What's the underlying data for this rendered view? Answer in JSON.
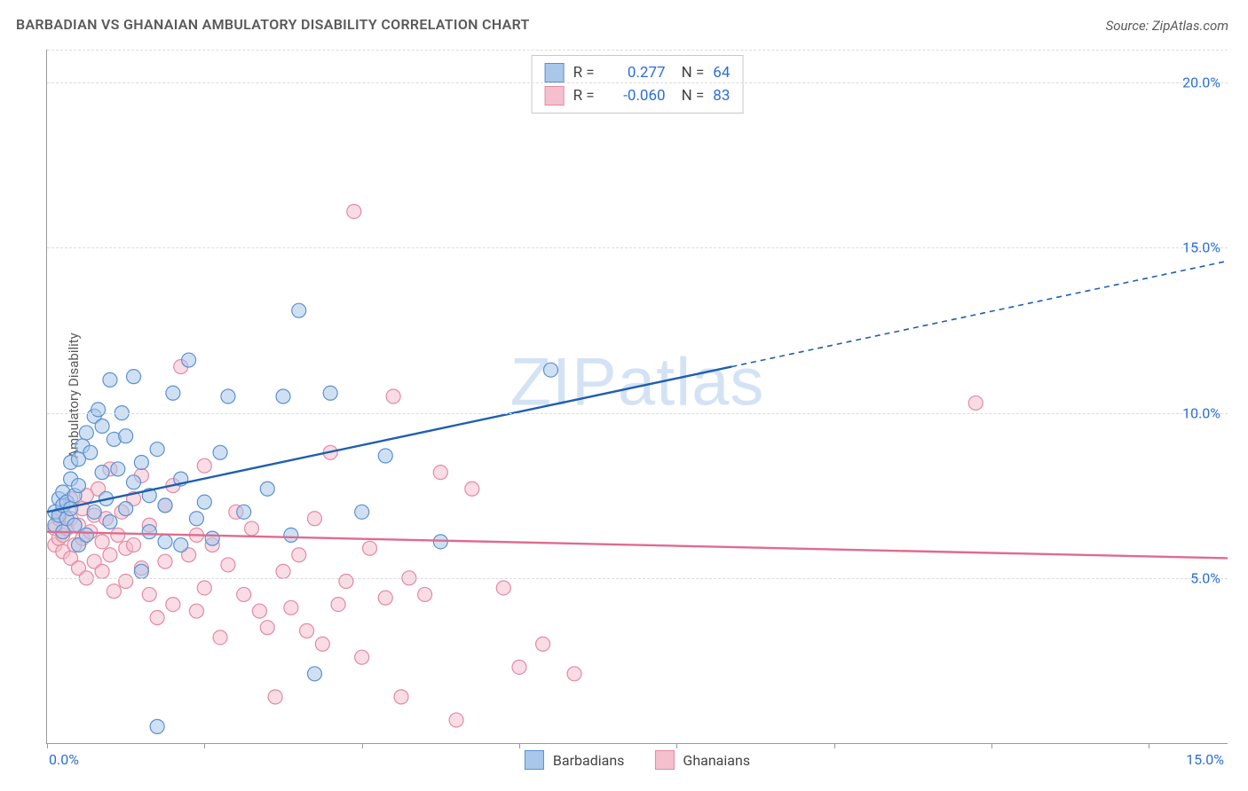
{
  "title": "BARBADIAN VS GHANAIAN AMBULATORY DISABILITY CORRELATION CHART",
  "source_label": "Source: ",
  "source_value": "ZipAtlas.com",
  "ylabel": "Ambulatory Disability",
  "watermark": "ZIPatlas",
  "chart": {
    "type": "scatter-with-regression",
    "xlim": [
      0,
      15
    ],
    "ylim": [
      0,
      21
    ],
    "y_ticks": [
      5,
      10,
      15,
      20
    ],
    "y_tick_labels": [
      "5.0%",
      "10.0%",
      "15.0%",
      "20.0%"
    ],
    "x_ticks": [
      0,
      2,
      4,
      6,
      8,
      10,
      12,
      14
    ],
    "x_labels_shown": {
      "0": "0.0%",
      "15": "15.0%"
    },
    "grid_color": "#dcdcdc",
    "axis_color": "#9a9a9a",
    "tick_label_color": "#2a6fd6",
    "background_color": "#ffffff",
    "marker_radius": 8,
    "marker_opacity": 0.55,
    "marker_stroke_width": 1.2,
    "line_width_solid": 2.4,
    "line_width_dashed": 1.6,
    "dash_pattern": "6,5"
  },
  "series": {
    "barbadians": {
      "label": "Barbadians",
      "fill_color": "#a9c7ea",
      "stroke_color": "#5a91d2",
      "line_color": "#1f5fb0",
      "R": "0.277",
      "N": "64",
      "regression": {
        "x1": 0,
        "y1": 7.0,
        "x2_solid": 8.7,
        "y2_solid": 11.4,
        "x2_dashed": 15,
        "y2_dashed": 14.6
      },
      "points": [
        [
          0.1,
          6.6
        ],
        [
          0.1,
          7.0
        ],
        [
          0.15,
          6.9
        ],
        [
          0.15,
          7.4
        ],
        [
          0.2,
          6.4
        ],
        [
          0.2,
          7.2
        ],
        [
          0.2,
          7.6
        ],
        [
          0.25,
          6.8
        ],
        [
          0.25,
          7.3
        ],
        [
          0.3,
          8.0
        ],
        [
          0.3,
          8.5
        ],
        [
          0.3,
          7.1
        ],
        [
          0.35,
          6.6
        ],
        [
          0.35,
          7.5
        ],
        [
          0.4,
          6.0
        ],
        [
          0.4,
          7.8
        ],
        [
          0.4,
          8.6
        ],
        [
          0.45,
          9.0
        ],
        [
          0.5,
          6.3
        ],
        [
          0.5,
          9.4
        ],
        [
          0.55,
          8.8
        ],
        [
          0.6,
          9.9
        ],
        [
          0.6,
          7.0
        ],
        [
          0.65,
          10.1
        ],
        [
          0.7,
          8.2
        ],
        [
          0.7,
          9.6
        ],
        [
          0.75,
          7.4
        ],
        [
          0.8,
          6.7
        ],
        [
          0.8,
          11.0
        ],
        [
          0.85,
          9.2
        ],
        [
          0.9,
          8.3
        ],
        [
          0.95,
          10.0
        ],
        [
          1.0,
          7.1
        ],
        [
          1.0,
          9.3
        ],
        [
          1.1,
          7.9
        ],
        [
          1.1,
          11.1
        ],
        [
          1.2,
          5.2
        ],
        [
          1.2,
          8.5
        ],
        [
          1.3,
          7.5
        ],
        [
          1.3,
          6.4
        ],
        [
          1.4,
          8.9
        ],
        [
          1.5,
          7.2
        ],
        [
          1.5,
          6.1
        ],
        [
          1.6,
          10.6
        ],
        [
          1.7,
          6.0
        ],
        [
          1.7,
          8.0
        ],
        [
          1.8,
          11.6
        ],
        [
          1.9,
          6.8
        ],
        [
          2.0,
          7.3
        ],
        [
          2.1,
          6.2
        ],
        [
          2.2,
          8.8
        ],
        [
          2.3,
          10.5
        ],
        [
          2.5,
          7.0
        ],
        [
          2.8,
          7.7
        ],
        [
          3.0,
          10.5
        ],
        [
          3.1,
          6.3
        ],
        [
          3.2,
          13.1
        ],
        [
          3.4,
          2.1
        ],
        [
          3.6,
          10.6
        ],
        [
          4.0,
          7.0
        ],
        [
          4.3,
          8.7
        ],
        [
          5.0,
          6.1
        ],
        [
          6.4,
          11.3
        ],
        [
          1.4,
          0.5
        ]
      ]
    },
    "ghanaians": {
      "label": "Ghanaians",
      "fill_color": "#f4c0cd",
      "stroke_color": "#e38aa3",
      "line_color": "#e06b8f",
      "R": "-0.060",
      "N": "83",
      "regression": {
        "x1": 0,
        "y1": 6.4,
        "x2_solid": 15,
        "y2_solid": 5.6,
        "x2_dashed": 15,
        "y2_dashed": 5.6
      },
      "points": [
        [
          0.1,
          6.0
        ],
        [
          0.1,
          6.5
        ],
        [
          0.15,
          6.2
        ],
        [
          0.15,
          6.8
        ],
        [
          0.2,
          5.8
        ],
        [
          0.2,
          6.3
        ],
        [
          0.2,
          7.0
        ],
        [
          0.25,
          6.5
        ],
        [
          0.3,
          5.6
        ],
        [
          0.3,
          6.8
        ],
        [
          0.3,
          7.4
        ],
        [
          0.35,
          6.0
        ],
        [
          0.4,
          6.6
        ],
        [
          0.4,
          5.3
        ],
        [
          0.45,
          7.1
        ],
        [
          0.45,
          6.2
        ],
        [
          0.5,
          5.0
        ],
        [
          0.5,
          7.5
        ],
        [
          0.55,
          6.4
        ],
        [
          0.6,
          5.5
        ],
        [
          0.6,
          6.9
        ],
        [
          0.65,
          7.7
        ],
        [
          0.7,
          5.2
        ],
        [
          0.7,
          6.1
        ],
        [
          0.75,
          6.8
        ],
        [
          0.8,
          5.7
        ],
        [
          0.8,
          8.3
        ],
        [
          0.85,
          4.6
        ],
        [
          0.9,
          6.3
        ],
        [
          0.95,
          7.0
        ],
        [
          1.0,
          5.9
        ],
        [
          1.0,
          4.9
        ],
        [
          1.1,
          7.4
        ],
        [
          1.1,
          6.0
        ],
        [
          1.2,
          5.3
        ],
        [
          1.2,
          8.1
        ],
        [
          1.3,
          4.5
        ],
        [
          1.3,
          6.6
        ],
        [
          1.4,
          3.8
        ],
        [
          1.5,
          5.5
        ],
        [
          1.5,
          7.2
        ],
        [
          1.6,
          7.8
        ],
        [
          1.6,
          4.2
        ],
        [
          1.7,
          11.4
        ],
        [
          1.8,
          5.7
        ],
        [
          1.9,
          4.0
        ],
        [
          1.9,
          6.3
        ],
        [
          2.0,
          4.7
        ],
        [
          2.0,
          8.4
        ],
        [
          2.1,
          6.0
        ],
        [
          2.2,
          3.2
        ],
        [
          2.3,
          5.4
        ],
        [
          2.4,
          7.0
        ],
        [
          2.5,
          4.5
        ],
        [
          2.6,
          6.5
        ],
        [
          2.7,
          4.0
        ],
        [
          2.8,
          3.5
        ],
        [
          2.9,
          1.4
        ],
        [
          3.0,
          5.2
        ],
        [
          3.1,
          4.1
        ],
        [
          3.2,
          5.7
        ],
        [
          3.3,
          3.4
        ],
        [
          3.4,
          6.8
        ],
        [
          3.5,
          3.0
        ],
        [
          3.6,
          8.8
        ],
        [
          3.7,
          4.2
        ],
        [
          3.8,
          4.9
        ],
        [
          3.9,
          16.1
        ],
        [
          4.0,
          2.6
        ],
        [
          4.1,
          5.9
        ],
        [
          4.3,
          4.4
        ],
        [
          4.4,
          10.5
        ],
        [
          4.5,
          1.4
        ],
        [
          4.6,
          5.0
        ],
        [
          4.8,
          4.5
        ],
        [
          5.0,
          8.2
        ],
        [
          5.2,
          0.7
        ],
        [
          5.4,
          7.7
        ],
        [
          5.8,
          4.7
        ],
        [
          6.0,
          2.3
        ],
        [
          6.3,
          3.0
        ],
        [
          6.7,
          2.1
        ],
        [
          11.8,
          10.3
        ]
      ]
    }
  },
  "legend_top": {
    "R_label": "R =",
    "N_label": "N ="
  }
}
